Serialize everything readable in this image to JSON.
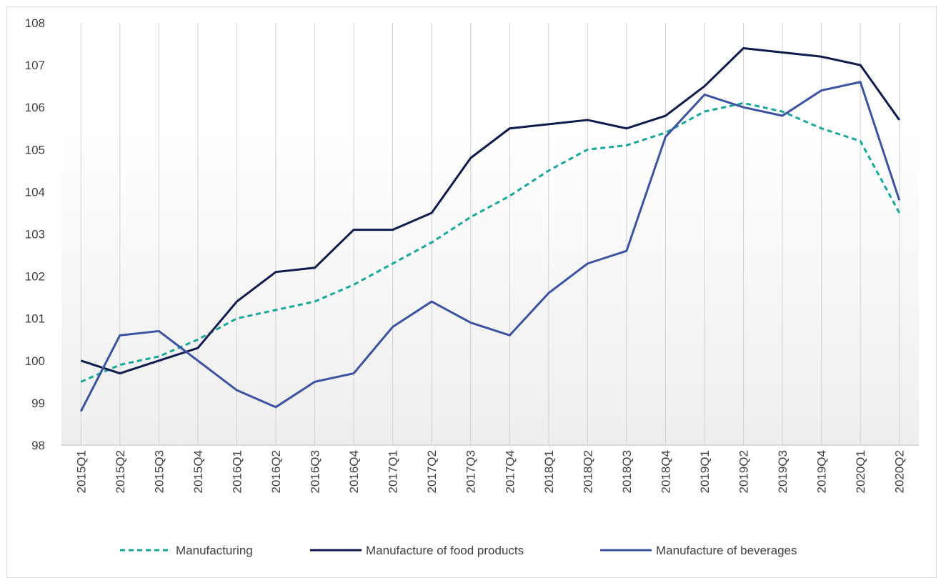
{
  "chart_data": {
    "type": "line",
    "title": "",
    "xlabel": "",
    "ylabel": "",
    "ylim": [
      98,
      108
    ],
    "yticks": [
      98,
      99,
      100,
      101,
      102,
      103,
      104,
      105,
      106,
      107,
      108
    ],
    "grid": "vertical",
    "legend_position": "bottom",
    "categories": [
      "2015Q1",
      "2015Q2",
      "2015Q3",
      "2015Q4",
      "2016Q1",
      "2016Q2",
      "2016Q3",
      "2016Q4",
      "2017Q1",
      "2017Q2",
      "2017Q3",
      "2017Q4",
      "2018Q1",
      "2018Q2",
      "2018Q3",
      "2018Q4",
      "2019Q1",
      "2019Q2",
      "2019Q3",
      "2019Q4",
      "2020Q1",
      "2020Q2"
    ],
    "series": [
      {
        "name": "Manufacturing",
        "color": "#16a89a",
        "style": "dashed",
        "values": [
          99.5,
          99.9,
          100.1,
          100.5,
          101.0,
          101.2,
          101.4,
          101.8,
          102.3,
          102.8,
          103.4,
          103.9,
          104.5,
          105.0,
          105.1,
          105.4,
          105.9,
          106.1,
          105.9,
          105.5,
          105.2,
          103.5
        ]
      },
      {
        "name": "Manufacture of food products",
        "color": "#0f1a4d",
        "style": "solid",
        "values": [
          100.0,
          99.7,
          100.0,
          100.3,
          101.4,
          102.1,
          102.2,
          103.1,
          103.1,
          103.5,
          104.8,
          105.5,
          105.6,
          105.7,
          105.5,
          105.8,
          106.5,
          107.4,
          107.3,
          107.2,
          107.0,
          105.7
        ]
      },
      {
        "name": "Manufacture of beverages",
        "color": "#3c52a3",
        "style": "solid",
        "values": [
          98.8,
          100.6,
          100.7,
          100.0,
          99.3,
          98.9,
          99.5,
          99.7,
          100.8,
          101.4,
          100.9,
          100.6,
          101.6,
          102.3,
          102.6,
          105.3,
          106.3,
          106.0,
          105.8,
          106.4,
          106.6,
          103.8
        ]
      }
    ]
  }
}
